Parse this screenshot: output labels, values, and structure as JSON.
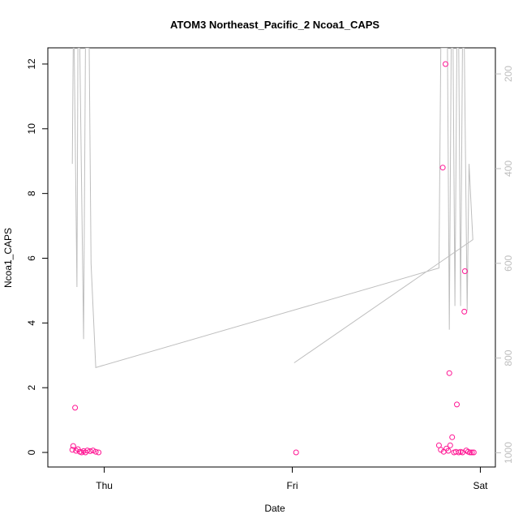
{
  "chart_data": {
    "type": "scatter",
    "title": "ATOM3 Northeast_Pacific_2 Ncoa1_CAPS",
    "xlabel": "Date",
    "ylabel": "Ncoa1_CAPS",
    "xlim": [
      -0.3,
      2.08
    ],
    "ylim": [
      -0.45,
      12.5
    ],
    "y_ticks": [
      0,
      2,
      4,
      6,
      8,
      10,
      12
    ],
    "x_ticks": [
      {
        "value": 0,
        "label": "Thu"
      },
      {
        "value": 1,
        "label": "Fri"
      },
      {
        "value": 2,
        "label": "Sat"
      }
    ],
    "right_axis": {
      "ylim": [
        1030,
        145
      ],
      "ticks": [
        200,
        400,
        600,
        800,
        1000
      ],
      "color": "#bebebe"
    },
    "grid": false,
    "series": [
      {
        "mark": "scatter",
        "color": "#ff1493",
        "points": [
          [
            -0.17,
            0.08
          ],
          [
            -0.165,
            0.2
          ],
          [
            -0.155,
            1.38
          ],
          [
            -0.15,
            0.05
          ],
          [
            -0.14,
            0.1
          ],
          [
            -0.13,
            0.02
          ],
          [
            -0.12,
            0.0
          ],
          [
            -0.11,
            0.04
          ],
          [
            -0.1,
            0.0
          ],
          [
            -0.09,
            0.06
          ],
          [
            -0.075,
            0.04
          ],
          [
            -0.06,
            0.06
          ],
          [
            -0.045,
            0.02
          ],
          [
            -0.03,
            0.0
          ],
          [
            1.02,
            0.0
          ],
          [
            1.78,
            0.22
          ],
          [
            1.79,
            0.08
          ],
          [
            1.8,
            8.8
          ],
          [
            1.805,
            0.02
          ],
          [
            1.815,
            12.0
          ],
          [
            1.82,
            0.12
          ],
          [
            1.83,
            0.05
          ],
          [
            1.835,
            2.45
          ],
          [
            1.84,
            0.22
          ],
          [
            1.85,
            0.47
          ],
          [
            1.86,
            0.0
          ],
          [
            1.87,
            0.02
          ],
          [
            1.875,
            1.48
          ],
          [
            1.885,
            0.0
          ],
          [
            1.895,
            0.02
          ],
          [
            1.905,
            0.0
          ],
          [
            1.915,
            4.35
          ],
          [
            1.918,
            5.6
          ],
          [
            1.925,
            0.06
          ],
          [
            1.935,
            0.02
          ],
          [
            1.945,
            0.0
          ],
          [
            1.955,
            0.0
          ],
          [
            1.965,
            0.0
          ]
        ]
      },
      {
        "mark": "line",
        "axis": "right",
        "color": "#bebebe",
        "points": [
          [
            -0.17,
            390
          ],
          [
            -0.165,
            145
          ],
          [
            -0.16,
            145
          ],
          [
            -0.145,
            650
          ],
          [
            -0.14,
            145
          ],
          [
            -0.13,
            145
          ],
          [
            -0.11,
            760
          ],
          [
            -0.1,
            145
          ],
          [
            -0.08,
            145
          ],
          [
            -0.07,
            600
          ],
          [
            -0.045,
            820
          ],
          [
            1.78,
            610
          ],
          [
            1.79,
            145
          ],
          [
            1.8,
            145
          ],
          [
            1.81,
            145
          ],
          [
            1.825,
            145
          ],
          [
            1.835,
            740
          ],
          [
            1.845,
            145
          ],
          [
            1.855,
            145
          ],
          [
            1.865,
            690
          ],
          [
            1.875,
            145
          ],
          [
            1.885,
            145
          ],
          [
            1.895,
            690
          ],
          [
            1.905,
            145
          ],
          [
            1.915,
            145
          ],
          [
            1.93,
            700
          ],
          [
            1.94,
            390
          ],
          [
            1.96,
            550
          ],
          [
            1.01,
            810
          ]
        ]
      }
    ]
  }
}
